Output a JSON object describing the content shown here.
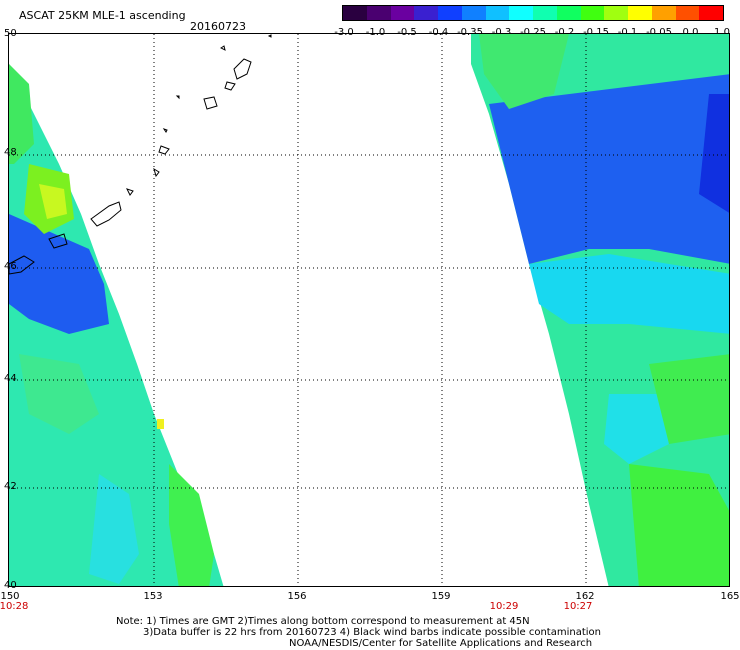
{
  "header": {
    "title": "ASCAT 25KM MLE-1 ascending",
    "date": "20160723"
  },
  "colorbar": {
    "colors": [
      "#2a0040",
      "#4a0070",
      "#6a00a0",
      "#3a20d0",
      "#1040ff",
      "#1080ff",
      "#10c0ff",
      "#10ffff",
      "#10ffb0",
      "#10ff60",
      "#40ff10",
      "#a0ff10",
      "#ffff00",
      "#ffa000",
      "#ff5000",
      "#ff0000"
    ],
    "ticks": [
      "-3.0",
      "-1.0",
      "-0.5",
      "-0.4",
      "-0.35",
      "-0.3",
      "-0.25",
      "-0.2",
      "-0.15",
      "-0.1",
      "-0.05",
      "0.0",
      "1.0"
    ]
  },
  "axes": {
    "lat_labels": [
      "50",
      "48",
      "46",
      "44",
      "42",
      "40"
    ],
    "lon_labels": [
      "150",
      "153",
      "156",
      "159",
      "162",
      "165"
    ]
  },
  "pass_times": [
    {
      "label": "10:28",
      "lon": 150
    },
    {
      "label": "10:29",
      "lon": 160.3
    },
    {
      "label": "10:27",
      "lon": 161.9
    }
  ],
  "notes": {
    "line1": "Note: 1) Times are GMT 2)Times along bottom correspond to measurement at 45N",
    "line2": "3)Data buffer is 22 hrs from 20160723 4) Black wind barbs indicate possible contamination",
    "line3": "NOAA/NESDIS/Center for Satellite Applications and Research"
  }
}
